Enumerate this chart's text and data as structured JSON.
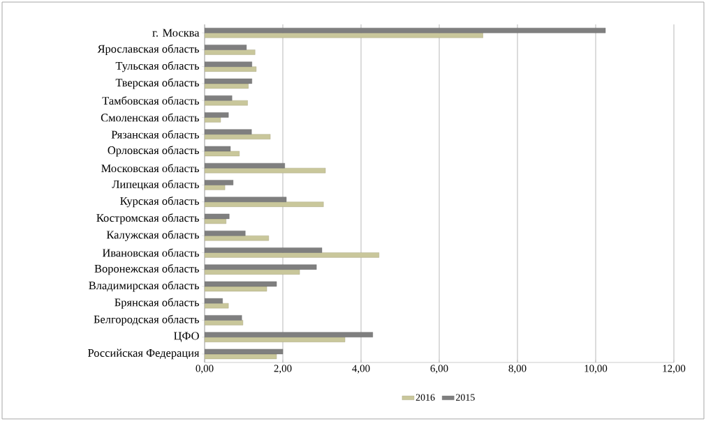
{
  "chart_data": {
    "type": "bar",
    "orientation": "horizontal",
    "categories": [
      "г. Москва",
      "Ярославская область",
      "Тульская область",
      "Тверская область",
      "Тамбовская область",
      "Смоленская область",
      "Рязанская область",
      "Орловская область",
      "Московская область",
      "Липецкая область",
      "Курская область",
      "Костромская область",
      "Калужская область",
      "Ивановская область",
      "Воронежская область",
      "Владимирская область",
      "Брянская область",
      "Белгородская область",
      "ЦФО",
      "Российская Федерация"
    ],
    "series": [
      {
        "name": "2016",
        "color": "#c9c79b",
        "values": [
          7.12,
          1.29,
          1.32,
          1.12,
          1.1,
          0.41,
          1.68,
          0.89,
          3.09,
          0.52,
          3.04,
          0.55,
          1.64,
          4.46,
          2.43,
          1.59,
          0.61,
          0.98,
          3.59,
          1.84
        ]
      },
      {
        "name": "2015",
        "color": "#7f7f7f",
        "values": [
          10.25,
          1.07,
          1.21,
          1.21,
          0.7,
          0.61,
          1.2,
          0.66,
          2.05,
          0.73,
          2.09,
          0.63,
          1.04,
          3.0,
          2.86,
          1.84,
          0.46,
          0.95,
          4.3,
          2.0
        ]
      }
    ],
    "xlim": [
      0,
      12
    ],
    "xticks": [
      {
        "value": 0,
        "label": "0,00"
      },
      {
        "value": 2,
        "label": "2,00"
      },
      {
        "value": 4,
        "label": "4,00"
      },
      {
        "value": 6,
        "label": "6,00"
      },
      {
        "value": 8,
        "label": "8,00"
      },
      {
        "value": 10,
        "label": "10,00"
      },
      {
        "value": 12,
        "label": "12,00"
      }
    ],
    "grid": "x",
    "legend": "bottom"
  }
}
